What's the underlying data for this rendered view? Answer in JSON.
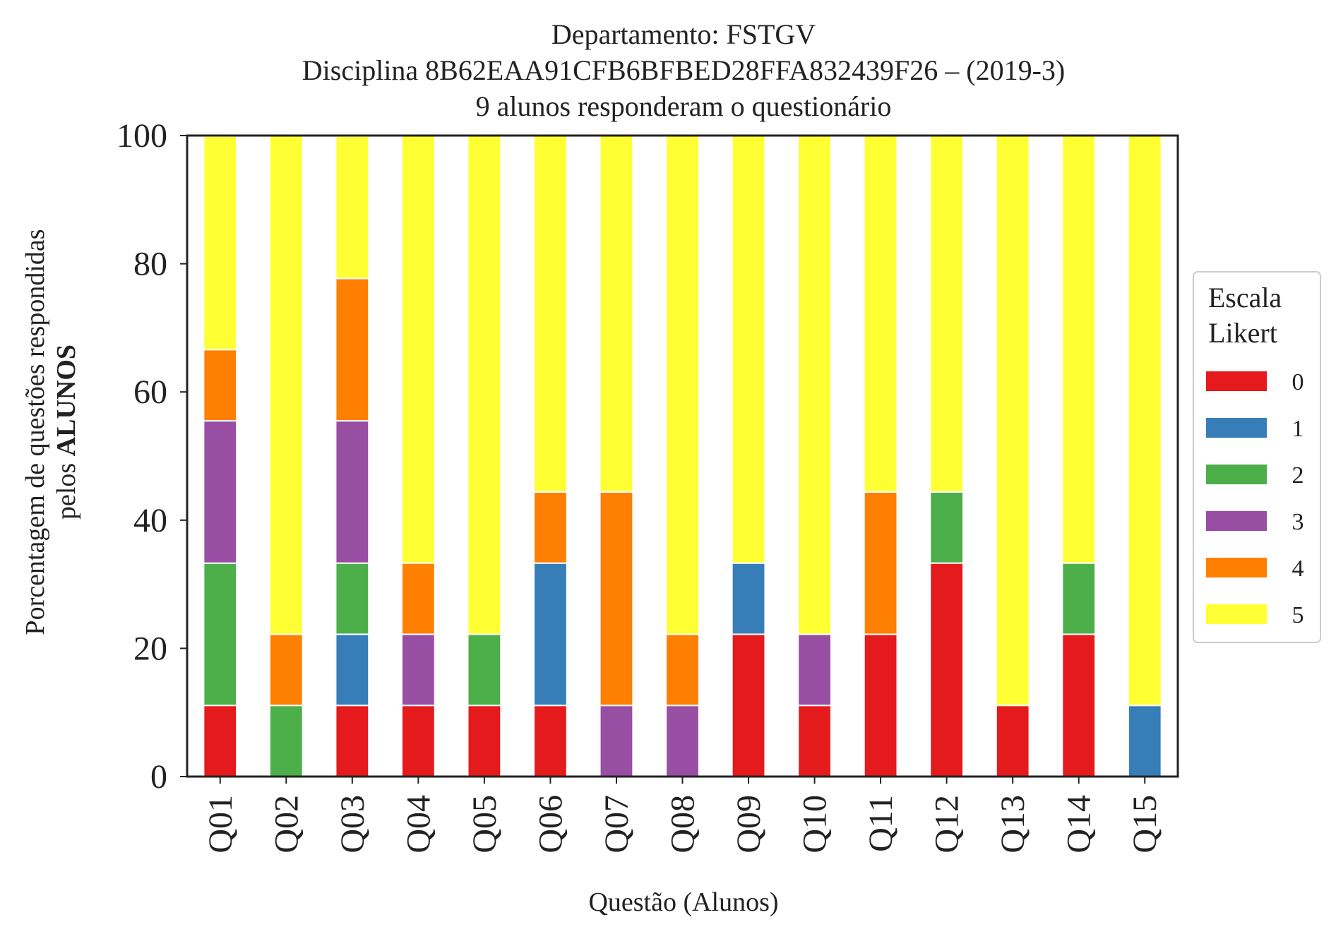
{
  "chart_data": {
    "type": "bar",
    "stacked": true,
    "title_lines": [
      "Departamento: FSTGV",
      "Disciplina 8B62EAA91CFB6BFBED28FFA832439F26 – (2019-3)",
      "9 alunos responderam o questionário"
    ],
    "xlabel": "Questão (Alunos)",
    "ylabel_lines": [
      "Porcentagem de questões respondidas",
      "pelos ",
      "ALUNOS"
    ],
    "ylim": [
      0,
      100
    ],
    "yticks": [
      0,
      20,
      40,
      60,
      80,
      100
    ],
    "grid": false,
    "categories": [
      "Q01",
      "Q02",
      "Q03",
      "Q04",
      "Q05",
      "Q06",
      "Q07",
      "Q08",
      "Q09",
      "Q10",
      "Q11",
      "Q12",
      "Q13",
      "Q14",
      "Q15"
    ],
    "legend": {
      "title_lines": [
        "Escala",
        "Likert"
      ],
      "placement": "right"
    },
    "series": [
      {
        "name": "0",
        "color": "#e41a1c",
        "values": [
          11.1,
          0,
          11.1,
          11.1,
          11.1,
          11.1,
          0,
          0,
          22.2,
          11.1,
          22.2,
          33.3,
          11.1,
          22.2,
          0
        ]
      },
      {
        "name": "1",
        "color": "#377eb8",
        "values": [
          0,
          0,
          11.1,
          0,
          0,
          22.2,
          0,
          0,
          11.1,
          0,
          0,
          0,
          0,
          0,
          11.1
        ]
      },
      {
        "name": "2",
        "color": "#4daf4a",
        "values": [
          22.2,
          11.1,
          11.1,
          0,
          11.1,
          0,
          0,
          0,
          0,
          0,
          0,
          11.1,
          0,
          11.1,
          0
        ]
      },
      {
        "name": "3",
        "color": "#984ea3",
        "values": [
          22.2,
          0,
          22.2,
          11.1,
          0,
          0,
          11.1,
          11.1,
          0,
          11.1,
          0,
          0,
          0,
          0,
          0
        ]
      },
      {
        "name": "4",
        "color": "#ff7f00",
        "values": [
          11.1,
          11.1,
          22.2,
          11.1,
          0,
          11.1,
          33.3,
          11.1,
          0,
          0,
          22.2,
          0,
          0,
          0,
          0
        ]
      },
      {
        "name": "5",
        "color": "#ffff33",
        "values": [
          33.3,
          77.8,
          22.2,
          66.7,
          77.8,
          55.6,
          55.6,
          77.8,
          66.7,
          77.8,
          55.6,
          55.6,
          88.9,
          66.7,
          88.9
        ]
      }
    ]
  }
}
